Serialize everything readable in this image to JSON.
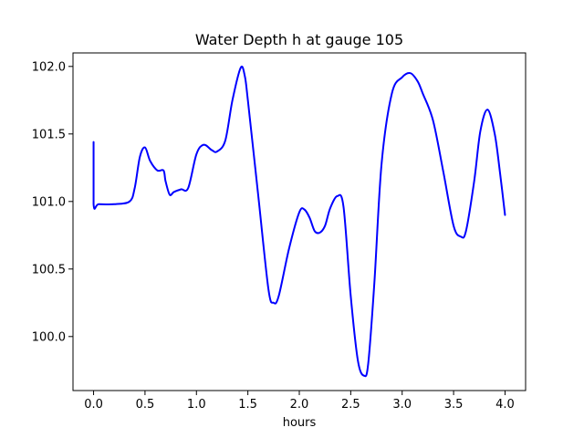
{
  "chart_data": {
    "type": "line",
    "title": "Water Depth h at gauge 105",
    "xlabel": "hours",
    "ylabel": "",
    "xlim": [
      -0.2,
      4.2
    ],
    "ylim": [
      99.6,
      102.1
    ],
    "xticks": [
      0.0,
      0.5,
      1.0,
      1.5,
      2.0,
      2.5,
      3.0,
      3.5,
      4.0
    ],
    "xtick_labels": [
      "0.0",
      "0.5",
      "1.0",
      "1.5",
      "2.0",
      "2.5",
      "3.0",
      "3.5",
      "4.0"
    ],
    "yticks": [
      100.0,
      100.5,
      101.0,
      101.5,
      102.0
    ],
    "ytick_labels": [
      "100.0",
      "100.5",
      "101.0",
      "101.5",
      "102.0"
    ],
    "grid": false,
    "series": [
      {
        "color": "#0000ff",
        "x": [
          0.0,
          0.0,
          0.05,
          0.2,
          0.35,
          0.4,
          0.45,
          0.5,
          0.55,
          0.62,
          0.68,
          0.7,
          0.74,
          0.78,
          0.85,
          0.92,
          1.0,
          1.07,
          1.15,
          1.2,
          1.28,
          1.35,
          1.43,
          1.47,
          1.5,
          1.6,
          1.7,
          1.75,
          1.8,
          1.9,
          2.0,
          2.05,
          2.1,
          2.15,
          2.2,
          2.25,
          2.3,
          2.37,
          2.43,
          2.5,
          2.57,
          2.63,
          2.67,
          2.73,
          2.8,
          2.9,
          3.0,
          3.08,
          3.15,
          3.2,
          3.3,
          3.4,
          3.5,
          3.57,
          3.62,
          3.7,
          3.76,
          3.83,
          3.9,
          3.95,
          4.0
        ],
        "y": [
          101.44,
          100.98,
          100.98,
          100.98,
          101.0,
          101.1,
          101.33,
          101.4,
          101.3,
          101.23,
          101.23,
          101.15,
          101.05,
          101.07,
          101.09,
          101.1,
          101.35,
          101.42,
          101.38,
          101.37,
          101.45,
          101.75,
          101.99,
          101.93,
          101.75,
          101.05,
          100.35,
          100.25,
          100.3,
          100.65,
          100.92,
          100.94,
          100.88,
          100.78,
          100.77,
          100.82,
          100.95,
          101.04,
          100.96,
          100.3,
          99.82,
          99.71,
          99.8,
          100.4,
          101.28,
          101.8,
          101.92,
          101.95,
          101.89,
          101.8,
          101.6,
          101.22,
          100.82,
          100.74,
          100.78,
          101.15,
          101.52,
          101.68,
          101.5,
          101.22,
          100.9
        ]
      }
    ]
  }
}
